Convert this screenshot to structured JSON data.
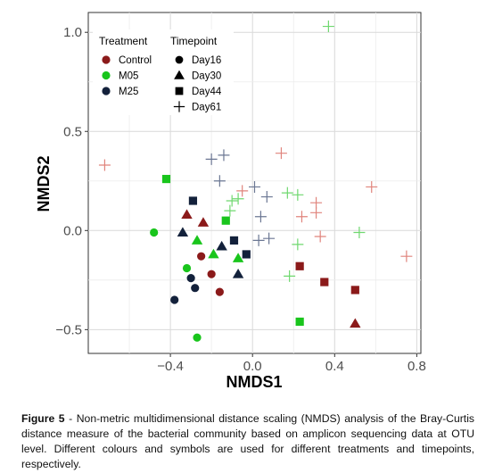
{
  "chart_data": {
    "type": "scatter",
    "xlabel": "NMDS1",
    "ylabel": "NMDS2",
    "xlim": [
      -0.8,
      0.82
    ],
    "ylim": [
      -0.62,
      1.1
    ],
    "x_ticks": [
      -0.4,
      0.0,
      0.4,
      0.8
    ],
    "x_tick_labels": [
      "−0.4",
      "0.0",
      "0.4",
      "0.8"
    ],
    "y_ticks": [
      -0.5,
      0.0,
      0.5,
      1.0
    ],
    "y_tick_labels": [
      "−0.5",
      "0.0",
      "0.5",
      "1.0"
    ],
    "grid": true,
    "legend_placement": "top-left",
    "treatment_legend": {
      "title": "Treatment",
      "items": [
        {
          "label": "Control",
          "color": "#8b1a1a"
        },
        {
          "label": "M05",
          "color": "#19c51c"
        },
        {
          "label": "M25",
          "color": "#13213b"
        }
      ]
    },
    "timepoint_legend": {
      "title": "Timepoint",
      "items": [
        {
          "label": "Day16",
          "shape": "circle"
        },
        {
          "label": "Day30",
          "shape": "triangle"
        },
        {
          "label": "Day44",
          "shape": "square"
        },
        {
          "label": "Day61",
          "shape": "plus"
        }
      ]
    },
    "colors": {
      "Control": "#8b1a1a",
      "M05": "#19c51c",
      "M25": "#13213b"
    },
    "plus_colors": {
      "Control": "#e0847c",
      "M05": "#6fd86f",
      "M25": "#6b7793"
    },
    "points": [
      {
        "x": -0.25,
        "y": -0.13,
        "treatment": "Control",
        "timepoint": "Day16"
      },
      {
        "x": -0.2,
        "y": -0.22,
        "treatment": "Control",
        "timepoint": "Day16"
      },
      {
        "x": -0.16,
        "y": -0.31,
        "treatment": "Control",
        "timepoint": "Day16"
      },
      {
        "x": -0.48,
        "y": -0.01,
        "treatment": "M05",
        "timepoint": "Day16"
      },
      {
        "x": -0.32,
        "y": -0.19,
        "treatment": "M05",
        "timepoint": "Day16"
      },
      {
        "x": -0.27,
        "y": -0.54,
        "treatment": "M05",
        "timepoint": "Day16"
      },
      {
        "x": -0.3,
        "y": -0.24,
        "treatment": "M25",
        "timepoint": "Day16"
      },
      {
        "x": -0.28,
        "y": -0.29,
        "treatment": "M25",
        "timepoint": "Day16"
      },
      {
        "x": -0.38,
        "y": -0.35,
        "treatment": "M25",
        "timepoint": "Day16"
      },
      {
        "x": -0.32,
        "y": 0.08,
        "treatment": "Control",
        "timepoint": "Day30"
      },
      {
        "x": -0.24,
        "y": 0.04,
        "treatment": "Control",
        "timepoint": "Day30"
      },
      {
        "x": 0.5,
        "y": -0.47,
        "treatment": "Control",
        "timepoint": "Day30"
      },
      {
        "x": -0.27,
        "y": -0.05,
        "treatment": "M05",
        "timepoint": "Day30"
      },
      {
        "x": -0.19,
        "y": -0.12,
        "treatment": "M05",
        "timepoint": "Day30"
      },
      {
        "x": -0.07,
        "y": -0.14,
        "treatment": "M05",
        "timepoint": "Day30"
      },
      {
        "x": -0.34,
        "y": -0.01,
        "treatment": "M25",
        "timepoint": "Day30"
      },
      {
        "x": -0.15,
        "y": -0.08,
        "treatment": "M25",
        "timepoint": "Day30"
      },
      {
        "x": -0.07,
        "y": -0.22,
        "treatment": "M25",
        "timepoint": "Day30"
      },
      {
        "x": 0.23,
        "y": -0.18,
        "treatment": "Control",
        "timepoint": "Day44"
      },
      {
        "x": 0.35,
        "y": -0.26,
        "treatment": "Control",
        "timepoint": "Day44"
      },
      {
        "x": 0.5,
        "y": -0.3,
        "treatment": "Control",
        "timepoint": "Day44"
      },
      {
        "x": -0.42,
        "y": 0.26,
        "treatment": "M05",
        "timepoint": "Day44"
      },
      {
        "x": -0.13,
        "y": 0.05,
        "treatment": "M05",
        "timepoint": "Day44"
      },
      {
        "x": 0.23,
        "y": -0.46,
        "treatment": "M05",
        "timepoint": "Day44"
      },
      {
        "x": -0.29,
        "y": 0.15,
        "treatment": "M25",
        "timepoint": "Day44"
      },
      {
        "x": -0.09,
        "y": -0.05,
        "treatment": "M25",
        "timepoint": "Day44"
      },
      {
        "x": -0.03,
        "y": -0.12,
        "treatment": "M25",
        "timepoint": "Day44"
      },
      {
        "x": -0.72,
        "y": 0.33,
        "treatment": "Control",
        "timepoint": "Day61"
      },
      {
        "x": 0.14,
        "y": 0.39,
        "treatment": "Control",
        "timepoint": "Day61"
      },
      {
        "x": -0.05,
        "y": 0.2,
        "treatment": "Control",
        "timepoint": "Day61"
      },
      {
        "x": 0.24,
        "y": 0.07,
        "treatment": "Control",
        "timepoint": "Day61"
      },
      {
        "x": 0.31,
        "y": 0.09,
        "treatment": "Control",
        "timepoint": "Day61"
      },
      {
        "x": 0.31,
        "y": 0.14,
        "treatment": "Control",
        "timepoint": "Day61"
      },
      {
        "x": 0.33,
        "y": -0.03,
        "treatment": "Control",
        "timepoint": "Day61"
      },
      {
        "x": 0.58,
        "y": 0.22,
        "treatment": "Control",
        "timepoint": "Day61"
      },
      {
        "x": 0.75,
        "y": -0.13,
        "treatment": "Control",
        "timepoint": "Day61"
      },
      {
        "x": 0.37,
        "y": 1.03,
        "treatment": "M05",
        "timepoint": "Day61"
      },
      {
        "x": 0.17,
        "y": 0.19,
        "treatment": "M05",
        "timepoint": "Day61"
      },
      {
        "x": 0.22,
        "y": 0.18,
        "treatment": "M05",
        "timepoint": "Day61"
      },
      {
        "x": -0.1,
        "y": 0.15,
        "treatment": "M05",
        "timepoint": "Day61"
      },
      {
        "x": -0.07,
        "y": 0.16,
        "treatment": "M05",
        "timepoint": "Day61"
      },
      {
        "x": -0.11,
        "y": 0.1,
        "treatment": "M05",
        "timepoint": "Day61"
      },
      {
        "x": 0.22,
        "y": -0.07,
        "treatment": "M05",
        "timepoint": "Day61"
      },
      {
        "x": 0.18,
        "y": -0.23,
        "treatment": "M05",
        "timepoint": "Day61"
      },
      {
        "x": 0.52,
        "y": -0.01,
        "treatment": "M05",
        "timepoint": "Day61"
      },
      {
        "x": -0.2,
        "y": 0.36,
        "treatment": "M25",
        "timepoint": "Day61"
      },
      {
        "x": -0.14,
        "y": 0.38,
        "treatment": "M25",
        "timepoint": "Day61"
      },
      {
        "x": -0.16,
        "y": 0.25,
        "treatment": "M25",
        "timepoint": "Day61"
      },
      {
        "x": 0.01,
        "y": 0.22,
        "treatment": "M25",
        "timepoint": "Day61"
      },
      {
        "x": 0.07,
        "y": 0.17,
        "treatment": "M25",
        "timepoint": "Day61"
      },
      {
        "x": 0.04,
        "y": 0.07,
        "treatment": "M25",
        "timepoint": "Day61"
      },
      {
        "x": 0.03,
        "y": -0.05,
        "treatment": "M25",
        "timepoint": "Day61"
      },
      {
        "x": 0.08,
        "y": -0.04,
        "treatment": "M25",
        "timepoint": "Day61"
      }
    ]
  },
  "caption": {
    "label": "Figure 5",
    "text": " - Non-metric multidimensional distance scaling (NMDS) analysis of the Bray-Curtis distance measure of the bacterial community based on amplicon sequencing data at OTU level. Different colours and symbols are used for different treatments and timepoints, respectively."
  }
}
